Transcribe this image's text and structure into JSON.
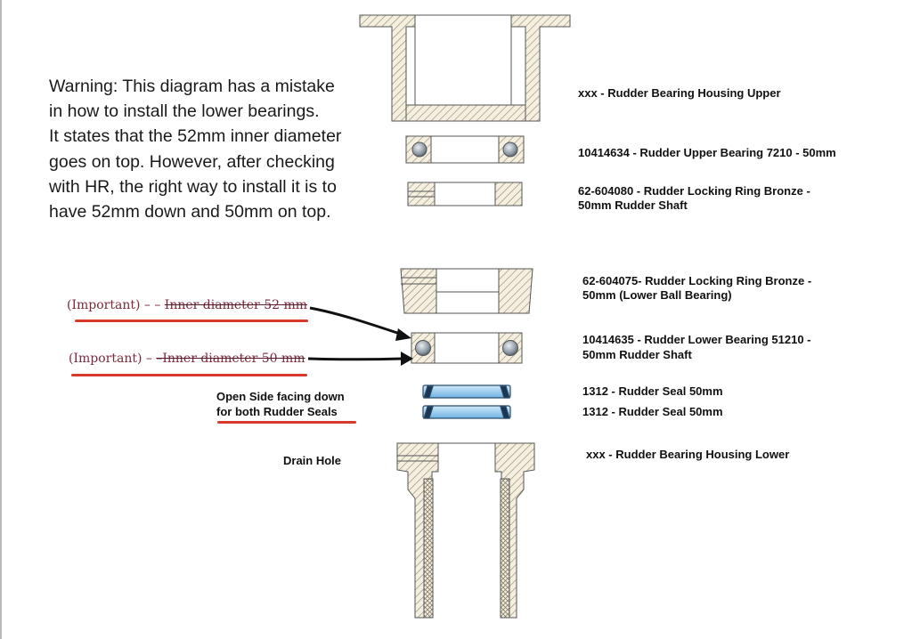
{
  "warning": {
    "lines": [
      "Warning: This diagram has a mistake",
      "in how to install the lower bearings.",
      "It states that the 52mm inner diameter",
      "goes on top. However, after checking",
      "with HR, the right way to install it is to",
      "have 52mm down and 50mm on top."
    ]
  },
  "parts": {
    "housing_upper": "xxx - Rudder Bearing Housing Upper",
    "upper_bearing": "10414634 - Rudder Upper Bearing 7210 - 50mm",
    "locking_ring_1_line1": "62-604080 - Rudder Locking Ring Bronze -",
    "locking_ring_1_line2": "50mm Rudder Shaft",
    "locking_ring_2_line1": "62-604075- Rudder Locking Ring Bronze -",
    "locking_ring_2_line2": "50mm (Lower Ball Bearing)",
    "lower_bearing_line1": "10414635 - Rudder Lower Bearing 51210 -",
    "lower_bearing_line2": "50mm Rudder Shaft",
    "seal_1": "1312 - Rudder Seal 50mm",
    "seal_2": "1312 - Rudder Seal 50mm",
    "housing_lower": "xxx - Rudder Bearing Housing Lower"
  },
  "annotations": {
    "important_1_prefix": "(Important)",
    "important_1_dash": "– –",
    "important_1_text": "Inner diameter 52 mm",
    "important_2_prefix": "(Important)",
    "important_2_dash": "–",
    "important_2_text": "–Inner diameter 50 mm",
    "seal_note_line1": "Open Side facing down",
    "seal_note_line2": "for both Rudder Seals",
    "drain_hole": "Drain Hole"
  },
  "colors": {
    "hatch": "#9a8d70",
    "outline": "#555555",
    "seal_blue": "#8fc6ea",
    "annotation_red": "#d63a2a",
    "annotation_text": "#7a2a3a"
  }
}
